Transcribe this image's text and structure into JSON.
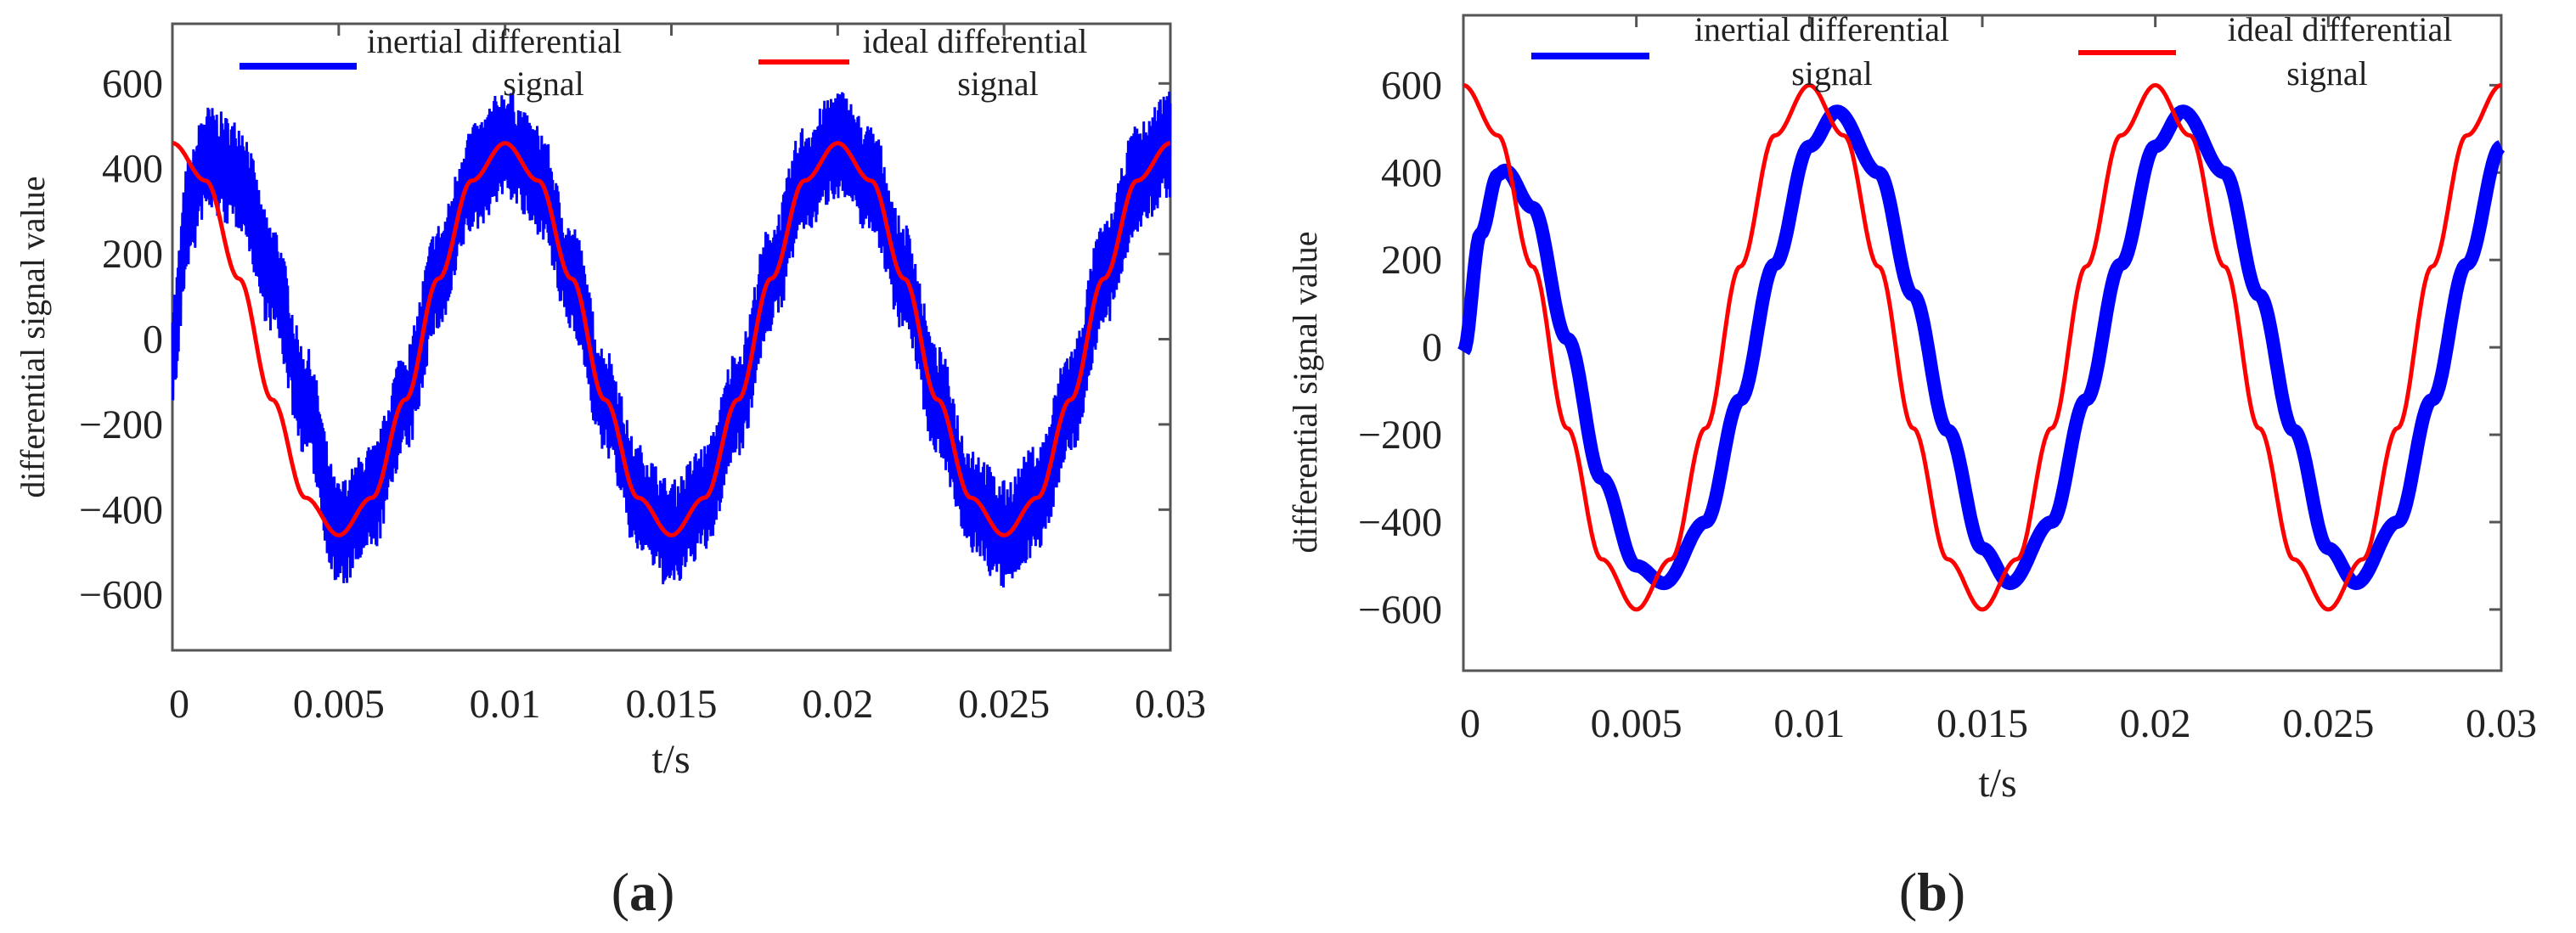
{
  "chart_data": [
    {
      "type": "line",
      "caption": "a",
      "title": "",
      "xlabel": "t/s",
      "ylabel": "differential signal value",
      "xlim": [
        0,
        0.03
      ],
      "ylim": [
        -730,
        740
      ],
      "xticks": [
        0,
        0.005,
        0.01,
        0.015,
        0.02,
        0.025,
        0.03
      ],
      "xtick_labels": [
        "0",
        "0.005",
        "0.01",
        "0.015",
        "0.02",
        "0.025",
        "0.03"
      ],
      "yticks": [
        600,
        400,
        200,
        0,
        -200,
        -400,
        -600
      ],
      "ytick_labels": [
        "600",
        "400",
        "200",
        "0",
        "−200",
        "−400",
        "−600"
      ],
      "legend": [
        "inertial differential signal",
        "ideal differential signal"
      ],
      "legend_position": "top",
      "series": [
        {
          "name": "inertial differential signal",
          "color": "#0000ff",
          "style": "noisy band",
          "x": [
            0,
            0.0005,
            0.001,
            0.002,
            0.003,
            0.004,
            0.005,
            0.006,
            0.007,
            0.008,
            0.009,
            0.01,
            0.011,
            0.012,
            0.013,
            0.014,
            0.015,
            0.016,
            0.017,
            0.018,
            0.019,
            0.02,
            0.021,
            0.022,
            0.023,
            0.024,
            0.025,
            0.026,
            0.027,
            0.028,
            0.029,
            0.03
          ],
          "center": [
            -20,
            300,
            420,
            385,
            145,
            -145,
            -460,
            -375,
            -145,
            145,
            375,
            460,
            375,
            145,
            -145,
            -375,
            -460,
            -375,
            -145,
            145,
            375,
            460,
            375,
            145,
            -145,
            -375,
            -460,
            -375,
            -145,
            145,
            375,
            460
          ],
          "half_width": 130
        },
        {
          "name": "ideal differential signal",
          "color": "#ff0000",
          "x": [
            0,
            0.001,
            0.002,
            0.003,
            0.004,
            0.005,
            0.006,
            0.007,
            0.008,
            0.009,
            0.01,
            0.011,
            0.012,
            0.013,
            0.014,
            0.015,
            0.016,
            0.017,
            0.018,
            0.019,
            0.02,
            0.021,
            0.022,
            0.023,
            0.024,
            0.025,
            0.026,
            0.027,
            0.028,
            0.029,
            0.03
          ],
          "values": [
            460,
            372,
            142,
            -142,
            -372,
            -460,
            -372,
            -142,
            142,
            372,
            460,
            372,
            142,
            -142,
            -372,
            -460,
            -372,
            -142,
            142,
            372,
            460,
            372,
            142,
            -142,
            -372,
            -460,
            -372,
            -142,
            142,
            372,
            460
          ]
        }
      ]
    },
    {
      "type": "line",
      "caption": "b",
      "title": "",
      "xlabel": "t/s",
      "ylabel": "differential signal value",
      "xlim": [
        0,
        0.03
      ],
      "ylim": [
        -740,
        760
      ],
      "xticks": [
        0,
        0.005,
        0.01,
        0.015,
        0.02,
        0.025,
        0.03
      ],
      "xtick_labels": [
        "0",
        "0.005",
        "0.01",
        "0.015",
        "0.02",
        "0.025",
        "0.03"
      ],
      "yticks": [
        600,
        400,
        200,
        0,
        -200,
        -400,
        -600
      ],
      "ytick_labels": [
        "600",
        "400",
        "200",
        "0",
        "−200",
        "−400",
        "−600"
      ],
      "legend": [
        "inertial differential signal",
        "ideal differential signal"
      ],
      "legend_position": "top",
      "series": [
        {
          "name": "inertial differential signal",
          "color": "#0000ff",
          "style": "thick band",
          "x": [
            0,
            0.0005,
            0.001,
            0.0012,
            0.002,
            0.003,
            0.004,
            0.005,
            0.0058,
            0.007,
            0.008,
            0.009,
            0.01,
            0.0108,
            0.012,
            0.013,
            0.014,
            0.015,
            0.0158,
            0.017,
            0.018,
            0.019,
            0.02,
            0.0208,
            0.022,
            0.023,
            0.024,
            0.025,
            0.0258,
            0.027,
            0.028,
            0.029,
            0.03
          ],
          "values": [
            -10,
            260,
            395,
            405,
            320,
            20,
            -300,
            -500,
            -540,
            -400,
            -120,
            190,
            460,
            540,
            400,
            120,
            -190,
            -460,
            -540,
            -400,
            -120,
            190,
            460,
            540,
            400,
            120,
            -190,
            -460,
            -540,
            -400,
            -120,
            190,
            460
          ],
          "half_width": 18
        },
        {
          "name": "ideal differential signal",
          "color": "#ff0000",
          "x": [
            0,
            0.001,
            0.002,
            0.003,
            0.004,
            0.005,
            0.006,
            0.007,
            0.008,
            0.009,
            0.01,
            0.011,
            0.012,
            0.013,
            0.014,
            0.015,
            0.016,
            0.017,
            0.018,
            0.019,
            0.02,
            0.021,
            0.022,
            0.023,
            0.024,
            0.025,
            0.026,
            0.027,
            0.028,
            0.029,
            0.03
          ],
          "values": [
            600,
            485,
            185,
            -185,
            -485,
            -600,
            -485,
            -185,
            185,
            485,
            600,
            485,
            185,
            -185,
            -485,
            -600,
            -485,
            -185,
            185,
            485,
            600,
            485,
            185,
            -185,
            -485,
            -600,
            -485,
            -185,
            185,
            485,
            600
          ]
        }
      ]
    }
  ],
  "legend_labels": {
    "inertial_line1": "inertial differential",
    "inertial_line2": "signal",
    "ideal_line1": "ideal differential",
    "ideal_line2": "signal"
  },
  "captions": {
    "a_open": "(",
    "a_letter": "a",
    "a_close": ")",
    "b_open": "(",
    "b_letter": "b",
    "b_close": ")"
  },
  "colors": {
    "inertial": "#0000ff",
    "ideal": "#ff0000",
    "frame": "#555555"
  }
}
